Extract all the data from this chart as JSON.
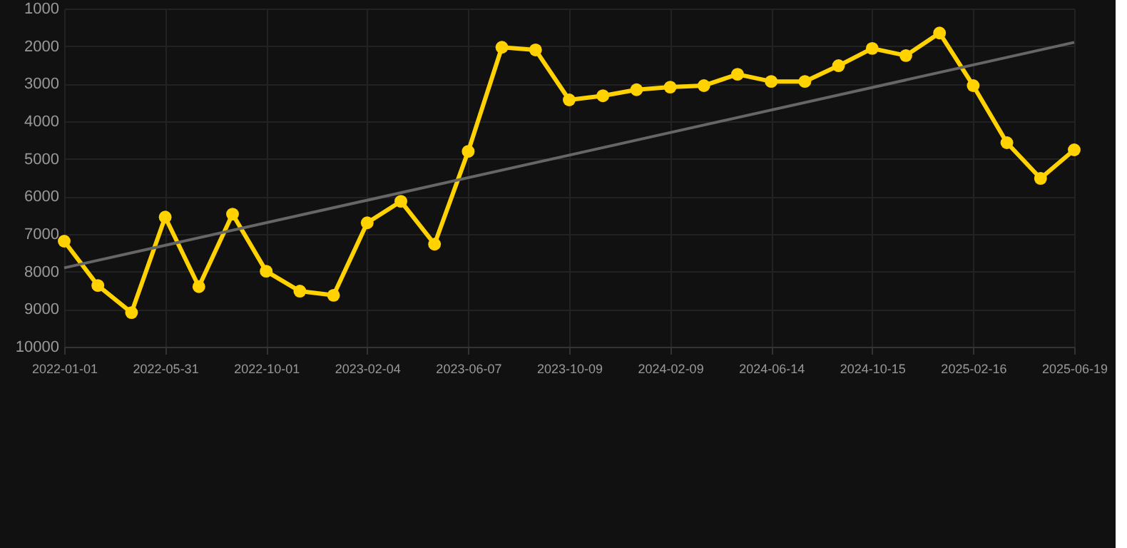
{
  "chart_data": {
    "type": "line",
    "categories": [
      "2022-01-01",
      null,
      null,
      "2022-05-31",
      null,
      null,
      "2022-10-01",
      null,
      null,
      "2023-02-04",
      null,
      null,
      "2023-06-07",
      null,
      null,
      "2023-10-09",
      null,
      null,
      "2024-02-09",
      null,
      null,
      "2024-06-14",
      null,
      null,
      "2024-10-15",
      null,
      null,
      "2025-02-16",
      null,
      null,
      "2025-06-19"
    ],
    "series": [
      {
        "color": "#ffd200",
        "marker": "circle",
        "values": [
          7190,
          8370,
          9090,
          6550,
          8400,
          6470,
          7990,
          8520,
          8630,
          6700,
          6130,
          7270,
          4800,
          2030,
          2100,
          3430,
          3320,
          3160,
          3090,
          3050,
          2750,
          2940,
          2940,
          2520,
          2060,
          2250,
          1650,
          3050,
          4570,
          5520,
          4760
        ]
      },
      {
        "type": "line",
        "color": "#666666",
        "marker": "none",
        "values": [
          7900,
          null,
          null,
          null,
          null,
          null,
          null,
          null,
          null,
          null,
          null,
          null,
          null,
          null,
          null,
          null,
          null,
          null,
          null,
          null,
          null,
          null,
          null,
          null,
          null,
          null,
          null,
          null,
          null,
          null,
          1900
        ]
      }
    ],
    "ylim": [
      10000,
      1000
    ],
    "yticks": [
      1000,
      2000,
      3000,
      4000,
      5000,
      6000,
      7000,
      8000,
      9000,
      10000
    ],
    "grid": true
  }
}
